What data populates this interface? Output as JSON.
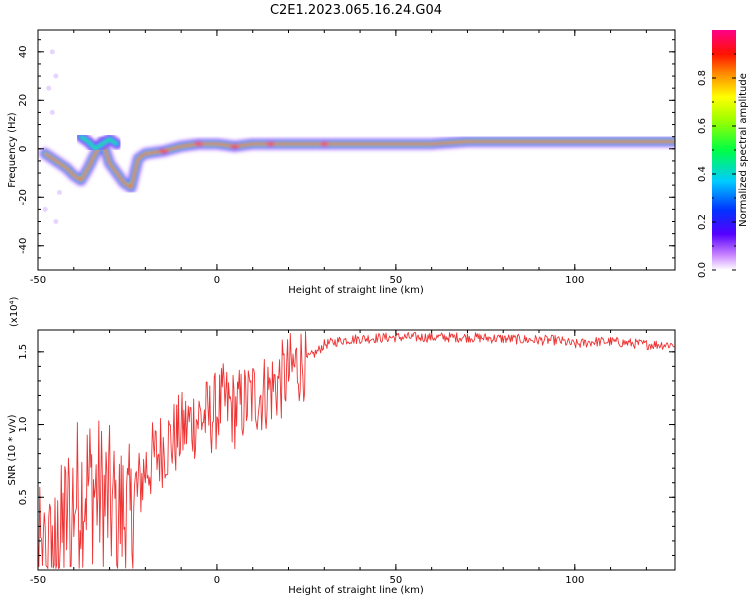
{
  "title": "C2E1.2023.065.16.24.G04",
  "chart_data": [
    {
      "type": "heatmap",
      "title": "C2E1.2023.065.16.24.G04",
      "xlabel": "Height of straight line (km)",
      "ylabel": "Frequency (Hz)",
      "xlim": [
        -50,
        128
      ],
      "ylim": [
        -50,
        49
      ],
      "xticks": [
        -50,
        0,
        50,
        100
      ],
      "yticks": [
        -40,
        -20,
        0,
        20,
        40
      ],
      "colorbar": {
        "label": "Normalized spectral amplitude",
        "range": [
          0,
          1
        ],
        "ticks": [
          "0.0",
          "0.2",
          "0.4",
          "0.6",
          "0.8"
        ],
        "colormap": "rainbow (white → purple → blue → cyan → green → yellow → orange → red → magenta)"
      },
      "ridge": {
        "description": "dominant frequency ridge",
        "x": [
          -48,
          -45,
          -42,
          -40,
          -38,
          -36,
          -34,
          -32,
          -30,
          -28,
          -26,
          -24,
          -22,
          -20,
          -15,
          -10,
          -5,
          0,
          5,
          10,
          15,
          20,
          30,
          40,
          50,
          60,
          70,
          80,
          90,
          95,
          100,
          103,
          110,
          120,
          128
        ],
        "y": [
          -2,
          -5,
          -8,
          -11,
          -13,
          -8,
          -2,
          3,
          -6,
          -10,
          -14,
          -16,
          -4,
          -2,
          -1,
          1,
          2,
          2,
          1,
          2,
          2,
          2,
          2,
          2,
          2,
          2,
          3,
          3,
          3,
          3,
          3,
          3,
          3,
          3,
          3
        ]
      },
      "secondary_branch": {
        "x": [
          -38,
          -36,
          -34,
          -32,
          -30,
          -28
        ],
        "y": [
          5,
          3,
          0,
          2,
          4,
          2
        ]
      }
    },
    {
      "type": "line",
      "xlabel": "Height of straight line (km)",
      "ylabel": "SNR (10 * v/v)",
      "y_multiplier": "(x10⁴)",
      "xlim": [
        -50,
        128
      ],
      "ylim": [
        0,
        1.65
      ],
      "xticks": [
        -50,
        0,
        50,
        100
      ],
      "yticks": [
        0.5,
        1.0,
        1.5
      ],
      "line_color": "#ee3333",
      "series": [
        {
          "x": [
            -50,
            -46,
            -44,
            -42,
            -40,
            -38,
            -36,
            -34,
            -32,
            -30,
            -28,
            -26,
            -24,
            -22,
            -20,
            -18,
            -15,
            -12,
            -10,
            -8,
            -5,
            -2,
            0,
            2,
            5,
            8,
            10,
            12,
            15,
            18,
            20,
            22,
            25,
            28,
            30,
            35,
            40,
            50,
            60,
            70,
            80,
            90,
            95,
            100,
            105,
            110,
            120,
            128
          ],
          "y": [
            0.02,
            0.05,
            0.15,
            0.35,
            0.5,
            0.55,
            0.6,
            0.55,
            0.5,
            0.45,
            0.4,
            0.38,
            0.3,
            0.55,
            0.7,
            0.75,
            0.85,
            0.9,
            0.95,
            1.0,
            1.05,
            1.05,
            1.1,
            1.15,
            1.1,
            1.15,
            1.2,
            1.2,
            1.25,
            1.3,
            1.35,
            1.4,
            1.45,
            1.5,
            1.55,
            1.58,
            1.59,
            1.6,
            1.6,
            1.6,
            1.59,
            1.58,
            1.58,
            1.55,
            1.57,
            1.57,
            1.55,
            1.55
          ]
        }
      ]
    }
  ],
  "colors": {
    "line": "#ee3333"
  }
}
